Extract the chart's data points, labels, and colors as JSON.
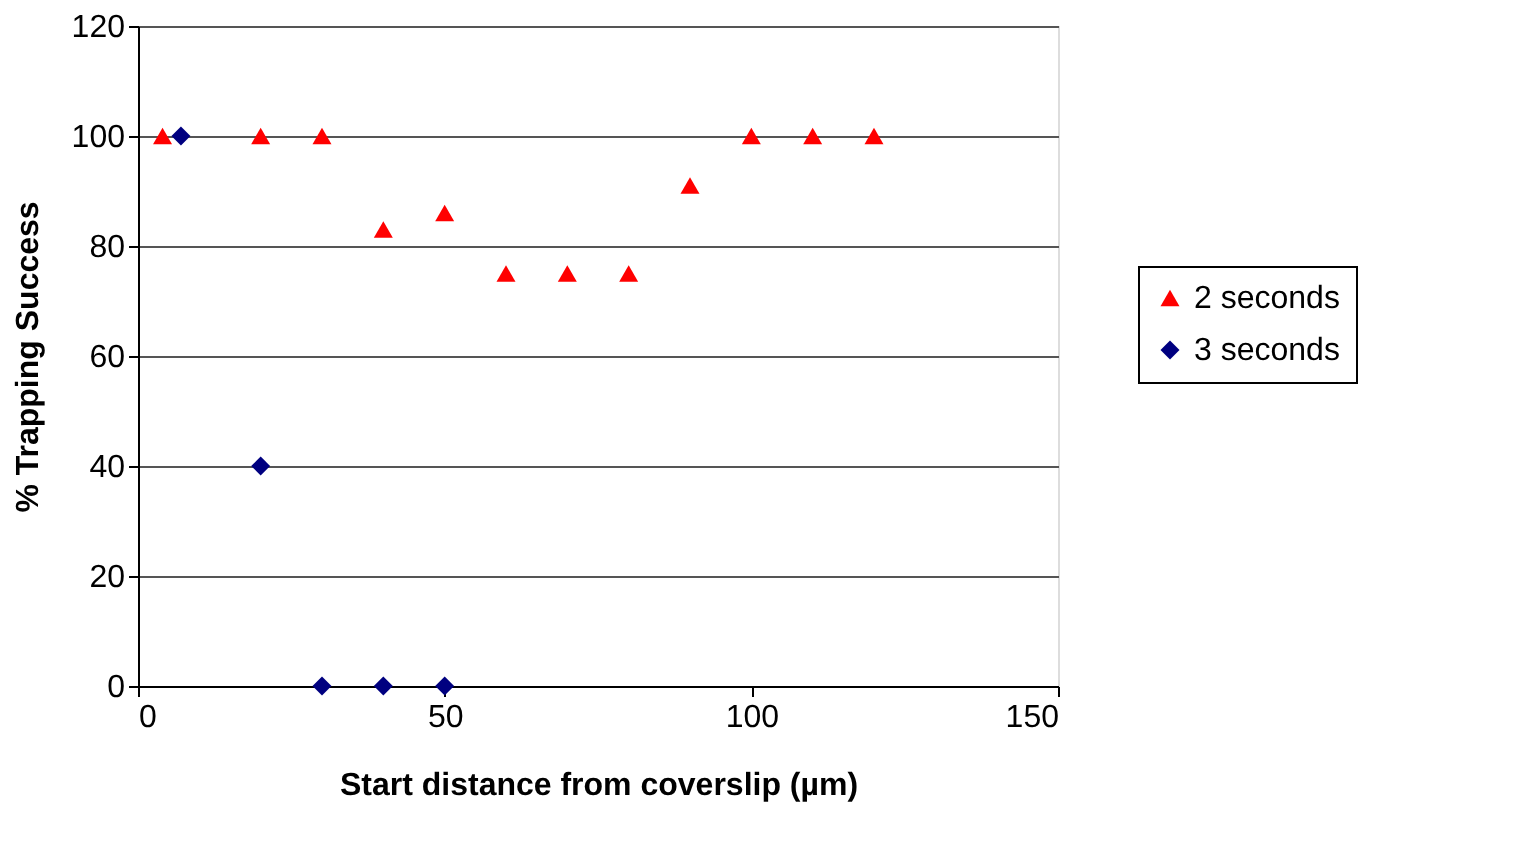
{
  "chart_data": {
    "type": "scatter",
    "xlabel": "Start distance from coverslip (µm)",
    "ylabel": "% Trapping Success",
    "xlim": [
      0,
      150
    ],
    "xticks": [
      0,
      50,
      100,
      150
    ],
    "ylim": [
      0,
      120
    ],
    "yticks": [
      0,
      20,
      40,
      60,
      80,
      100,
      120
    ],
    "grid": "y",
    "legend": "right",
    "series": [
      {
        "name": "2 seconds",
        "color": "#ff0000",
        "marker": "triangle",
        "x": [
          4,
          20,
          30,
          40,
          50,
          60,
          70,
          80,
          90,
          100,
          110,
          120
        ],
        "values": [
          100,
          100,
          100,
          83,
          86,
          75,
          75,
          75,
          91,
          100,
          100,
          100
        ]
      },
      {
        "name": "3 seconds",
        "color": "#000080",
        "marker": "diamond",
        "x": [
          7,
          20,
          30,
          40,
          50
        ],
        "values": [
          100,
          40,
          0,
          0,
          0
        ]
      }
    ]
  }
}
